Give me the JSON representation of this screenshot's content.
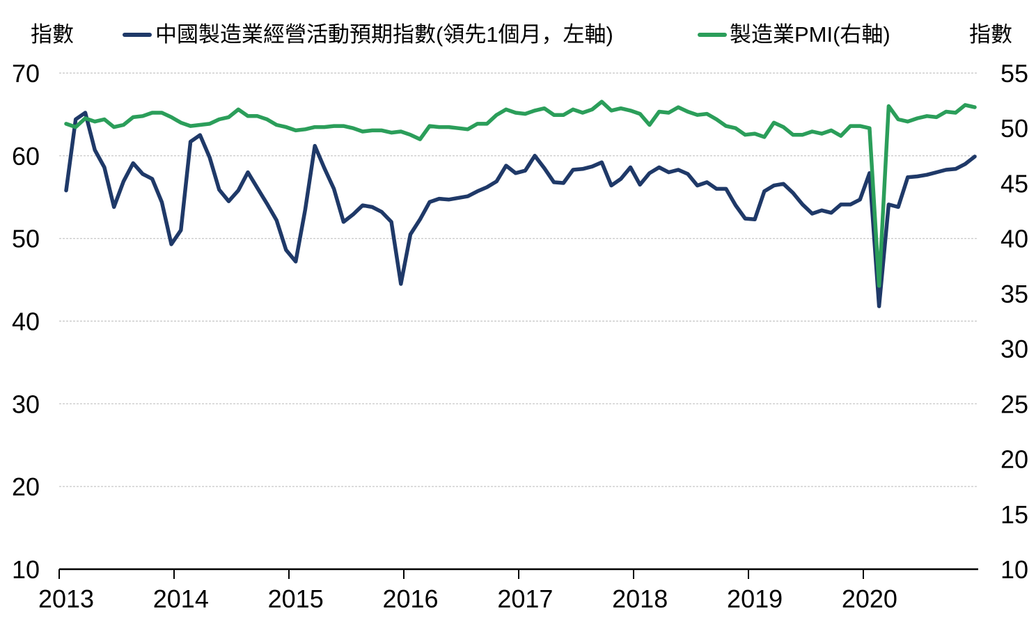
{
  "header": {
    "left_axis_title": "指數",
    "right_axis_title": "指數",
    "legend": [
      {
        "label": "中國製造業經營活動預期指數(領先1個月，左軸)",
        "color": "#1f3968"
      },
      {
        "label": "製造業PMI(右軸)",
        "color": "#2b9e5a"
      }
    ]
  },
  "colors": {
    "expectations_line": "#1f3968",
    "pmi_line": "#2b9e5a",
    "gridline": "#cdcdcd",
    "axis": "#000000",
    "text": "#000000",
    "background": "#ffffff"
  },
  "chart_data": {
    "type": "line",
    "title": "",
    "x_unit": "month",
    "x_start": "2013-01",
    "x_end": "2020-12",
    "x_tick_labels": [
      "2013",
      "2014",
      "2015",
      "2016",
      "2017",
      "2018",
      "2019",
      "2020"
    ],
    "left_axis": {
      "title": "指數",
      "min": 10,
      "max": 70,
      "tick_step": 10,
      "ticks": [
        70,
        60,
        50,
        40,
        30,
        20,
        10
      ]
    },
    "right_axis": {
      "title": "指數",
      "min": 10,
      "max": 55,
      "tick_step": 5,
      "ticks": [
        55,
        50,
        45,
        40,
        35,
        30,
        25,
        20,
        15,
        10
      ]
    },
    "grid": "horizontal-dotted",
    "legend_position": "top",
    "series": [
      {
        "name": "中國製造業經營活動預期指數(領先1個月，左軸)",
        "axis": "left",
        "color": "#1f3968",
        "values": [
          55.8,
          64.4,
          65.2,
          60.7,
          58.6,
          53.8,
          56.9,
          59.1,
          57.8,
          57.2,
          54.4,
          49.3,
          51.0,
          61.7,
          62.5,
          59.8,
          55.9,
          54.5,
          55.8,
          58.0,
          56.1,
          54.2,
          52.2,
          48.6,
          47.2,
          53.5,
          61.2,
          58.5,
          56.0,
          52.0,
          52.9,
          54.0,
          53.8,
          53.2,
          52.0,
          44.5,
          50.5,
          52.3,
          54.4,
          54.8,
          54.7,
          54.9,
          55.1,
          55.7,
          56.2,
          56.9,
          58.8,
          57.9,
          58.2,
          60.0,
          58.5,
          56.8,
          56.7,
          58.3,
          58.4,
          58.7,
          59.2,
          56.4,
          57.2,
          58.6,
          56.5,
          57.9,
          58.6,
          58.0,
          58.3,
          57.8,
          56.4,
          56.8,
          56.0,
          56.0,
          54.0,
          52.4,
          52.3,
          55.7,
          56.4,
          56.6,
          55.5,
          54.1,
          53.0,
          53.4,
          53.1,
          54.1,
          54.1,
          54.7,
          57.9,
          41.8,
          54.1,
          53.8,
          57.4,
          57.5,
          57.7,
          58.0,
          58.3,
          58.4,
          59.0,
          59.9
        ]
      },
      {
        "name": "製造業PMI(右軸)",
        "axis": "right",
        "color": "#2b9e5a",
        "values": [
          50.4,
          50.1,
          50.9,
          50.6,
          50.8,
          50.1,
          50.3,
          51.0,
          51.1,
          51.4,
          51.4,
          51.0,
          50.5,
          50.2,
          50.3,
          50.4,
          50.8,
          51.0,
          51.7,
          51.1,
          51.1,
          50.8,
          50.3,
          50.1,
          49.8,
          49.9,
          50.1,
          50.1,
          50.2,
          50.2,
          50.0,
          49.7,
          49.8,
          49.8,
          49.6,
          49.7,
          49.4,
          49.0,
          50.2,
          50.1,
          50.1,
          50.0,
          49.9,
          50.4,
          50.4,
          51.2,
          51.7,
          51.4,
          51.3,
          51.6,
          51.8,
          51.2,
          51.2,
          51.7,
          51.4,
          51.7,
          52.4,
          51.6,
          51.8,
          51.6,
          51.3,
          50.3,
          51.5,
          51.4,
          51.9,
          51.5,
          51.2,
          51.3,
          50.8,
          50.2,
          50.0,
          49.4,
          49.5,
          49.2,
          50.5,
          50.1,
          49.4,
          49.4,
          49.7,
          49.5,
          49.8,
          49.3,
          50.2,
          50.2,
          50.0,
          35.7,
          52.0,
          50.8,
          50.6,
          50.9,
          51.1,
          51.0,
          51.5,
          51.4,
          52.1,
          51.9
        ]
      }
    ]
  }
}
